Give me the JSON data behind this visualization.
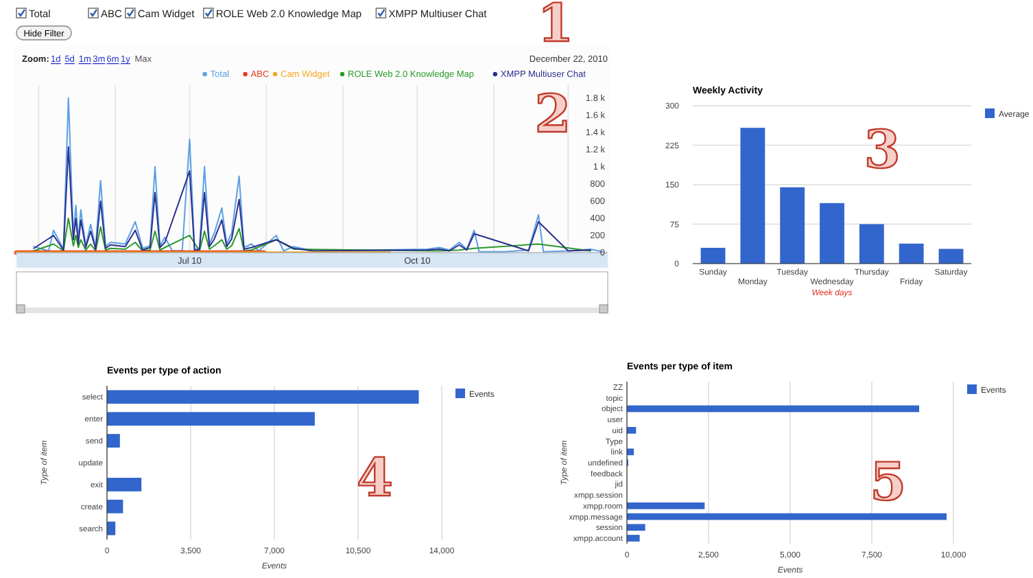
{
  "chart_data": [
    {
      "type": "line",
      "legend": "top right",
      "grid": "x",
      "annotations": [
        "Hide Filter",
        "Zoom:",
        "1d",
        "5d",
        "1m",
        "3m",
        "6m",
        "1y",
        "Max",
        "December 22, 2010",
        "1",
        "2"
      ],
      "xlim": [
        "2010-04-22",
        "2010-12-17"
      ],
      "xticks": [
        {
          "value": "2010-05-01",
          "label": null
        },
        {
          "value": "2010-06-01",
          "label": null
        },
        {
          "value": "2010-07-01",
          "label": "Jul 10"
        },
        {
          "value": "2010-08-01",
          "label": null
        },
        {
          "value": "2010-09-01",
          "label": null
        },
        {
          "value": "2010-10-01",
          "label": "Oct 10"
        },
        {
          "value": "2010-11-01",
          "label": null
        },
        {
          "value": "2010-12-01",
          "label": null
        }
      ],
      "ylim": [
        0,
        1950
      ],
      "yticks": [
        0,
        200,
        400,
        600,
        800,
        {
          "value": 1000,
          "label": "1 k"
        },
        {
          "value": 1200,
          "label": "1.2 k"
        },
        {
          "value": 1400,
          "label": "1.4 k"
        },
        {
          "value": 1600,
          "label": "1.6 k"
        },
        {
          "value": 1800,
          "label": "1.8 k"
        }
      ],
      "x": [
        "2010-04-29",
        "2010-05-02",
        "2010-05-05",
        "2010-05-07",
        "2010-05-09",
        "2010-05-11",
        "2010-05-13",
        "2010-05-15",
        "2010-05-16",
        "2010-05-17",
        "2010-05-18",
        "2010-05-20",
        "2010-05-22",
        "2010-05-24",
        "2010-05-26",
        "2010-05-28",
        "2010-05-30",
        "2010-06-02",
        "2010-06-05",
        "2010-06-09",
        "2010-06-12",
        "2010-06-15",
        "2010-06-17",
        "2010-06-19",
        "2010-06-21",
        "2010-06-24",
        "2010-06-28",
        "2010-07-01",
        "2010-07-03",
        "2010-07-05",
        "2010-07-07",
        "2010-07-09",
        "2010-07-11",
        "2010-07-14",
        "2010-07-16",
        "2010-07-18",
        "2010-07-21",
        "2010-07-23",
        "2010-07-26",
        "2010-07-29",
        "2010-08-01",
        "2010-08-05",
        "2010-08-08",
        "2010-08-12",
        "2010-08-15",
        "2010-08-20",
        "2010-08-25",
        "2010-09-05",
        "2010-09-20",
        "2010-10-05",
        "2010-10-10",
        "2010-10-14",
        "2010-10-18",
        "2010-10-21",
        "2010-10-24",
        "2010-10-26",
        "2010-11-05",
        "2010-11-15",
        "2010-11-19",
        "2010-11-21",
        "2010-12-01",
        "2010-12-10",
        "2010-12-15"
      ],
      "series": [
        {
          "name": "Total",
          "color": "#5a9fe6",
          "values": [
            70,
            null,
            20,
            260,
            null,
            40,
            1800,
            200,
            550,
            150,
            500,
            80,
            330,
            60,
            840,
            70,
            120,
            null,
            100,
            360,
            50,
            80,
            1000,
            80,
            180,
            20,
            20,
            1320,
            30,
            60,
            1000,
            100,
            230,
            520,
            100,
            230,
            890,
            60,
            100,
            20,
            null,
            200,
            20,
            70,
            null,
            20,
            null,
            null,
            null,
            40,
            60,
            30,
            120,
            40,
            260,
            10,
            10,
            30,
            440,
            10,
            20,
            40,
            10
          ]
        },
        {
          "name": "ABC",
          "color": "#e8381e",
          "x": [
            "2010-04-22",
            "2010-07-31"
          ],
          "values": [
            0,
            0
          ]
        },
        {
          "name": "Cam Widget",
          "color": "#f4a623",
          "x": [
            "2010-04-22",
            "2010-09-20"
          ],
          "values": [
            0,
            0
          ]
        },
        {
          "name": "ROLE Web 2.0 Knowledge Map",
          "color": "#2a9a2a",
          "values": [
            20,
            null,
            null,
            100,
            null,
            20,
            400,
            80,
            200,
            60,
            150,
            30,
            100,
            20,
            300,
            30,
            50,
            null,
            40,
            120,
            20,
            30,
            250,
            30,
            60,
            null,
            null,
            200,
            null,
            20,
            250,
            40,
            80,
            150,
            40,
            80,
            280,
            20,
            30,
            null,
            null,
            150,
            null,
            40,
            null,
            null,
            null,
            null,
            null,
            null,
            20,
            null,
            30,
            null,
            50,
            null,
            null,
            null,
            100,
            null,
            null,
            20,
            null
          ]
        },
        {
          "name": "XMPP Multiuser Chat",
          "color": "#2b2f8f",
          "values": [
            50,
            null,
            null,
            200,
            null,
            30,
            1230,
            150,
            400,
            100,
            380,
            60,
            250,
            40,
            600,
            50,
            90,
            null,
            70,
            260,
            30,
            60,
            700,
            60,
            120,
            null,
            null,
            950,
            20,
            40,
            700,
            70,
            160,
            380,
            70,
            160,
            620,
            40,
            60,
            null,
            null,
            150,
            null,
            50,
            null,
            20,
            null,
            null,
            null,
            30,
            40,
            20,
            90,
            30,
            220,
            null,
            null,
            20,
            360,
            null,
            20,
            30,
            null
          ]
        }
      ]
    },
    {
      "type": "bar",
      "title": "Weekly Activity",
      "xlabel": "Week days",
      "legend": "right",
      "grid": "y",
      "annotations": [
        "3"
      ],
      "categories": [
        "Sunday",
        "Monday",
        "Tuesday",
        "Wednesday",
        "Thursday",
        "Friday",
        "Saturday"
      ],
      "ylim": [
        0,
        300
      ],
      "yticks": [
        0,
        75,
        150,
        225,
        300
      ],
      "series": [
        {
          "name": "Average",
          "color": "#3366cc",
          "values": [
            30,
            258,
            145,
            115,
            75,
            38,
            28
          ]
        }
      ]
    },
    {
      "type": "bar",
      "orientation": "horizontal",
      "title": "Events per type of action",
      "xlabel": "Events",
      "ylabel": "Type of item",
      "legend": "right",
      "grid": "x",
      "annotations": [
        "4"
      ],
      "categories": [
        "select",
        "enter",
        "send",
        "update",
        "exit",
        "create",
        "search"
      ],
      "xlim": [
        0,
        14000
      ],
      "xticks": [
        0,
        {
          "value": 3500,
          "label": "3,500"
        },
        {
          "value": 7000,
          "label": "7,000"
        },
        {
          "value": 10500,
          "label": "10,500"
        },
        {
          "value": 14000,
          "label": "14,000"
        }
      ],
      "series": [
        {
          "name": "Events",
          "color": "#3366cc",
          "values": [
            13040,
            8690,
            540,
            0,
            1440,
            670,
            350
          ]
        }
      ]
    },
    {
      "type": "bar",
      "orientation": "horizontal",
      "title": "Events per type of item",
      "xlabel": "Events",
      "ylabel": "Type of item",
      "legend": "right",
      "grid": "x",
      "annotations": [
        "5"
      ],
      "categories": [
        "ZZ",
        "topic",
        "object",
        "user",
        "uid",
        "Type",
        "link",
        "undefined",
        "feedback",
        "jid",
        "xmpp.session",
        "xmpp.room",
        "xmpp.message",
        "session",
        "xmpp.account"
      ],
      "xlim": [
        0,
        10000
      ],
      "xticks": [
        0,
        {
          "value": 2500,
          "label": "2,500"
        },
        {
          "value": 5000,
          "label": "5,000"
        },
        {
          "value": 7500,
          "label": "7,500"
        },
        {
          "value": 10000,
          "label": "10,000"
        }
      ],
      "series": [
        {
          "name": "Events",
          "color": "#3366cc",
          "values": [
            0,
            0,
            8950,
            0,
            280,
            0,
            210,
            40,
            0,
            0,
            0,
            2380,
            9790,
            560,
            390
          ]
        }
      ]
    }
  ]
}
